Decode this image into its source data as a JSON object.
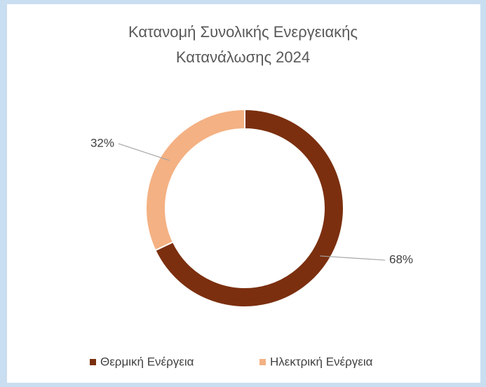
{
  "chart_data": {
    "type": "donut",
    "title": "Κατανομή Συνολικής Ενεργειακής\nΚατανάλωσης 2024",
    "categories": [
      "Θερμική Ενέργεια",
      "Ηλεκτρική Ενέργεια"
    ],
    "values": [
      68,
      32
    ],
    "value_labels": [
      "68%",
      "32%"
    ],
    "colors": [
      "#7b2f0f",
      "#f4b183"
    ],
    "legend": "bottom"
  }
}
